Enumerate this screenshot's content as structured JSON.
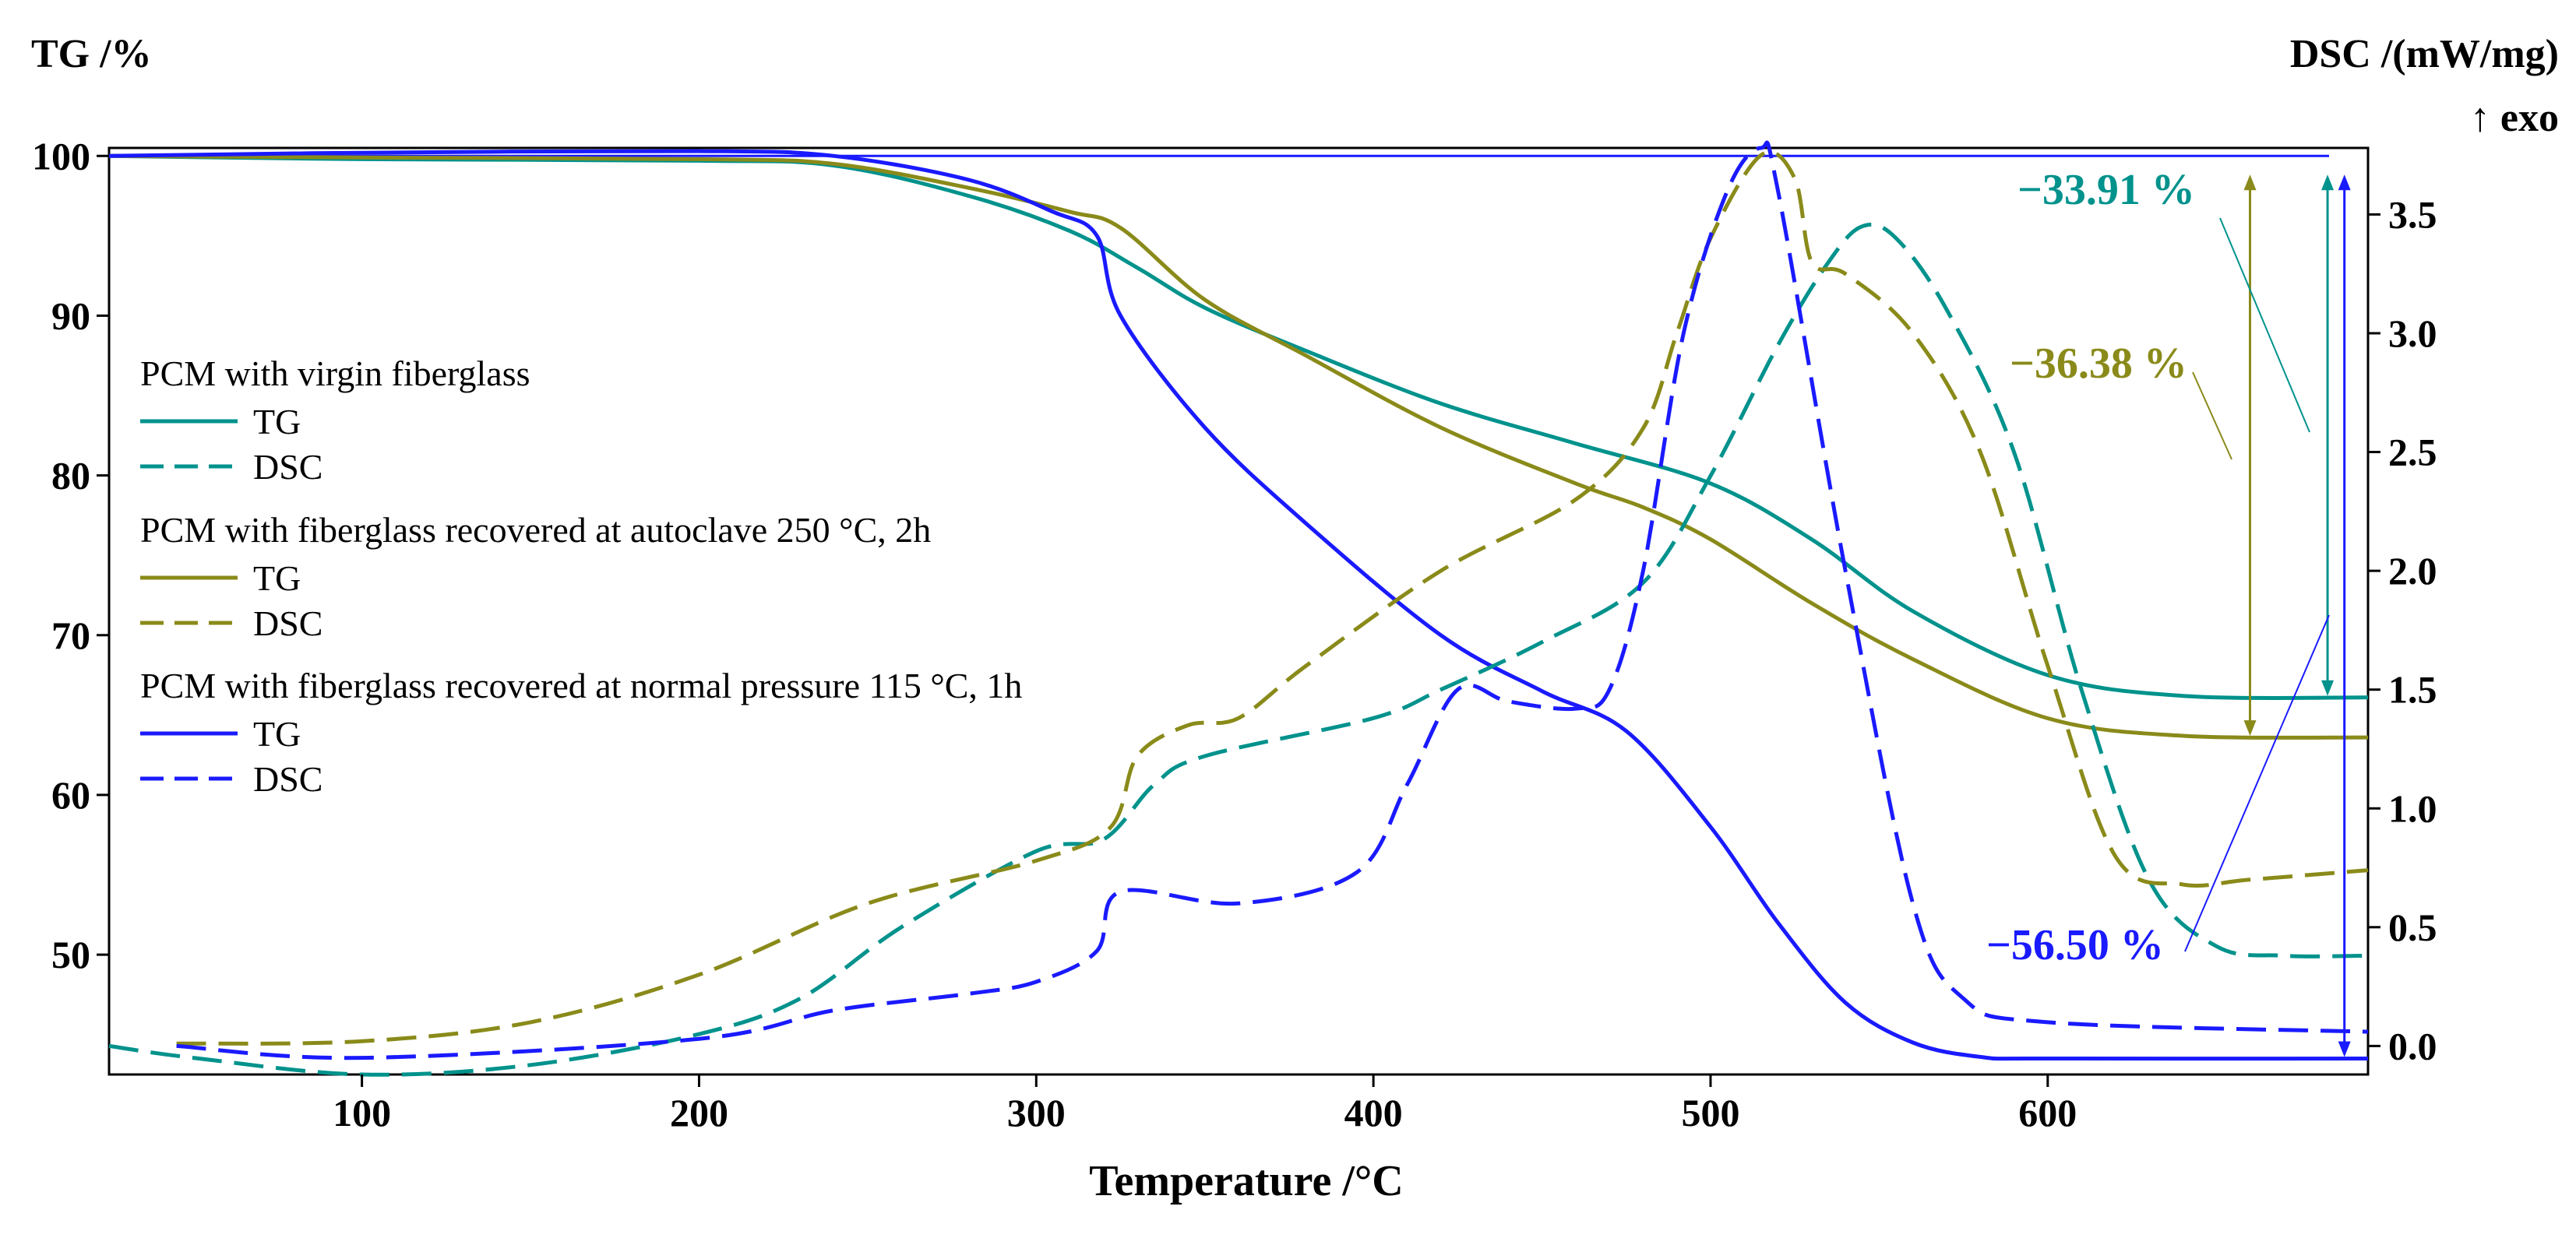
{
  "chart_data": {
    "type": "line",
    "xlabel": "Temperature /°C",
    "ylabel_left": "TG /%",
    "ylabel_right": "DSC /(mW/mg)",
    "exo_label": "↑ exo",
    "xlim": [
      25,
      695
    ],
    "ylim_left": [
      42.5,
      100.5
    ],
    "ylim_right": [
      -0.12,
      3.78
    ],
    "x_ticks": [
      100,
      200,
      300,
      400,
      500,
      600
    ],
    "y_left_ticks": [
      50,
      60,
      70,
      80,
      90,
      100
    ],
    "y_right_ticks": [
      0.0,
      0.5,
      1.0,
      1.5,
      2.0,
      2.5,
      3.0,
      3.5
    ],
    "x_tick_labels": [
      "100",
      "200",
      "300",
      "400",
      "500",
      "600"
    ],
    "y_left_tick_labels": [
      "50",
      "60",
      "70",
      "80",
      "90",
      "100"
    ],
    "y_right_tick_labels": [
      "0.0",
      "0.5",
      "1.0",
      "1.5",
      "2.0",
      "2.5",
      "3.0",
      "3.5"
    ],
    "legend": [
      {
        "group": "PCM with virgin fiberglass",
        "tg_label": "TG",
        "dsc_label": "DSC",
        "color": "#00928c"
      },
      {
        "group": "PCM with fiberglass recovered at autoclave 250 °C, 2h",
        "tg_label": "TG",
        "dsc_label": "DSC",
        "color": "#8a8a1a"
      },
      {
        "group": "PCM with fiberglass recovered at normal pressure 115 °C, 1h",
        "tg_label": "TG",
        "dsc_label": "DSC",
        "color": "#1a1aff"
      }
    ],
    "annotations": [
      {
        "text": "−33.91 %",
        "color": "#00928c"
      },
      {
        "text": "−36.38 %",
        "color": "#8a8a1a"
      },
      {
        "text": "−56.50 %",
        "color": "#1a1aff"
      }
    ],
    "mass_loss_arrows": [
      {
        "x": 683,
        "from": 100,
        "to": 66.1,
        "color": "#00928c"
      },
      {
        "x": 660,
        "from": 100,
        "to": 63.6,
        "color": "#8a8a1a"
      },
      {
        "x": 688,
        "from": 100,
        "to": 43.5,
        "color": "#1a1aff"
      }
    ],
    "series": [
      {
        "name": "TG",
        "group": 0,
        "axis": "left",
        "style": "solid",
        "color": "#00928c",
        "x": [
          25,
          100,
          200,
          240,
          280,
          310,
          330,
          350,
          380,
          420,
          460,
          500,
          530,
          560,
          600,
          640,
          695
        ],
        "y": [
          100,
          99.8,
          99.7,
          99.4,
          97.5,
          95.3,
          93.0,
          90.5,
          87.8,
          84.5,
          82.0,
          79.5,
          76.0,
          71.5,
          67.5,
          66.2,
          66.1
        ]
      },
      {
        "name": "TG",
        "group": 1,
        "axis": "left",
        "style": "solid",
        "color": "#8a8a1a",
        "x": [
          25,
          100,
          200,
          240,
          280,
          310,
          325,
          350,
          380,
          420,
          460,
          480,
          500,
          530,
          560,
          600,
          640,
          695
        ],
        "y": [
          100,
          99.9,
          99.8,
          99.5,
          98.0,
          96.5,
          95.5,
          91.0,
          87.5,
          83.0,
          79.5,
          78.0,
          76.0,
          72.0,
          68.5,
          64.8,
          63.7,
          63.6
        ]
      },
      {
        "name": "TG",
        "group": 2,
        "axis": "left",
        "style": "solid",
        "color": "#1a1aff",
        "x": [
          25,
          100,
          200,
          240,
          280,
          305,
          318,
          325,
          350,
          380,
          420,
          450,
          475,
          500,
          520,
          540,
          560,
          580,
          600,
          695
        ],
        "y": [
          100,
          100.2,
          100.3,
          100.0,
          98.5,
          96.5,
          95.0,
          90.0,
          83.0,
          77.0,
          70.0,
          66.5,
          64.0,
          58.0,
          52.0,
          47.0,
          44.5,
          43.6,
          43.5,
          43.5
        ]
      },
      {
        "name": "DSC",
        "group": 0,
        "axis": "right",
        "style": "dashed",
        "color": "#00928c",
        "x": [
          25,
          50,
          100,
          150,
          200,
          230,
          260,
          300,
          320,
          335,
          350,
          400,
          420,
          450,
          480,
          500,
          520,
          535,
          545,
          555,
          570,
          590,
          610,
          630,
          650,
          670,
          695
        ],
        "y": [
          0.0,
          -0.05,
          -0.12,
          -0.08,
          0.05,
          0.2,
          0.5,
          0.82,
          0.87,
          1.1,
          1.22,
          1.38,
          1.5,
          1.7,
          1.95,
          2.4,
          2.95,
          3.3,
          3.45,
          3.4,
          3.1,
          2.5,
          1.5,
          0.7,
          0.42,
          0.38,
          0.38
        ]
      },
      {
        "name": "DSC",
        "group": 1,
        "axis": "right",
        "style": "dashed",
        "color": "#8a8a1a",
        "x": [
          45,
          100,
          150,
          200,
          250,
          300,
          322,
          330,
          345,
          360,
          380,
          420,
          460,
          480,
          490,
          500,
          515,
          525,
          530,
          540,
          560,
          580,
          600,
          620,
          640,
          660,
          695
        ],
        "y": [
          0.01,
          0.02,
          0.1,
          0.3,
          0.6,
          0.78,
          0.92,
          1.22,
          1.35,
          1.38,
          1.6,
          2.0,
          2.3,
          2.6,
          3.0,
          3.4,
          3.75,
          3.65,
          3.3,
          3.25,
          3.0,
          2.5,
          1.6,
          0.8,
          0.68,
          0.7,
          0.74
        ]
      },
      {
        "name": "DSC",
        "group": 2,
        "axis": "right",
        "style": "dashed",
        "color": "#1a1aff",
        "x": [
          45,
          100,
          200,
          240,
          280,
          300,
          318,
          325,
          360,
          395,
          410,
          425,
          440,
          460,
          470,
          480,
          492,
          505,
          515,
          520,
          540,
          560,
          575,
          600,
          695
        ],
        "y": [
          0.0,
          -0.05,
          0.03,
          0.15,
          0.22,
          0.27,
          0.4,
          0.65,
          0.6,
          0.73,
          1.1,
          1.5,
          1.45,
          1.42,
          1.5,
          2.0,
          3.0,
          3.6,
          3.78,
          3.6,
          2.0,
          0.6,
          0.2,
          0.1,
          0.06
        ]
      }
    ]
  }
}
